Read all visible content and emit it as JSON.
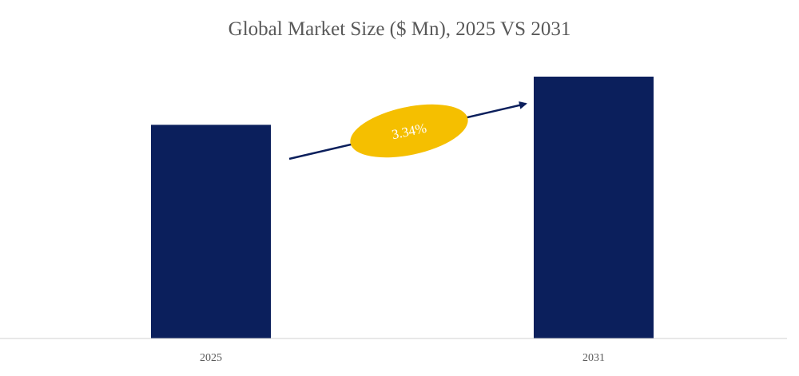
{
  "chart_data": {
    "type": "bar",
    "title": "Global Market Size ($ Mn), 2025 VS 2031",
    "xlabel": "",
    "ylabel": "",
    "categories": [
      "2025",
      "2031"
    ],
    "values": [
      81.6,
      100
    ],
    "ylim": [
      0,
      100
    ],
    "value_note": "relative bar heights (no value axis shown)",
    "annotation": {
      "label": "3.34%",
      "type": "growth-arrow"
    },
    "grid": false,
    "legend": "none",
    "colors": {
      "bar": "#0b1f5c",
      "arrow": "#0b1f5c",
      "badge": "#f5bf00",
      "badge_text": "#ffffff",
      "text": "#595959",
      "baseline": "#d0d0d0"
    }
  }
}
